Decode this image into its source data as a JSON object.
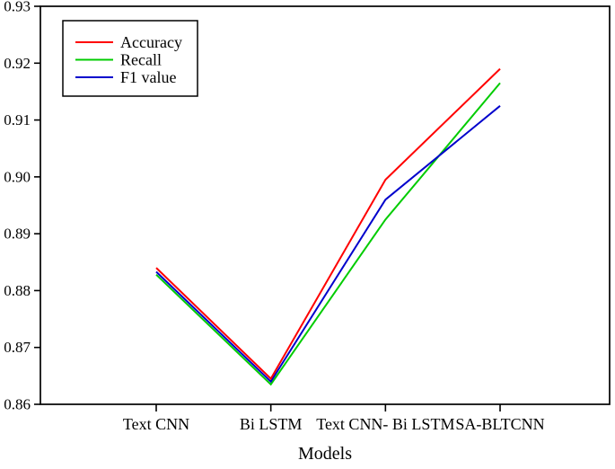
{
  "figure": {
    "background": "#ffffff",
    "axis_color": "#000000"
  },
  "chart_data": {
    "type": "line",
    "title": "",
    "xlabel": "Models",
    "ylabel": "",
    "categories": [
      "Text CNN",
      "Bi LSTM",
      "Text CNN- Bi LSTM",
      "SA-BLTCNN"
    ],
    "series": [
      {
        "name": "Accuracy",
        "color": "#ff0000",
        "values": [
          0.884,
          0.8645,
          0.8995,
          0.919
        ]
      },
      {
        "name": "Recall",
        "color": "#00cc00",
        "values": [
          0.8828,
          0.8635,
          0.8925,
          0.9165
        ]
      },
      {
        "name": "F1 value",
        "color": "#0000cc",
        "values": [
          0.8833,
          0.864,
          0.896,
          0.9125
        ]
      }
    ],
    "ylim": [
      0.86,
      0.93
    ],
    "yticks": [
      0.86,
      0.87,
      0.88,
      0.89,
      0.9,
      0.91,
      0.92,
      0.93
    ],
    "ytick_decimals": 2,
    "grid": false,
    "legend_position": "top-left",
    "legend_entries": [
      "Accuracy",
      "Recall",
      "F1 value"
    ]
  }
}
